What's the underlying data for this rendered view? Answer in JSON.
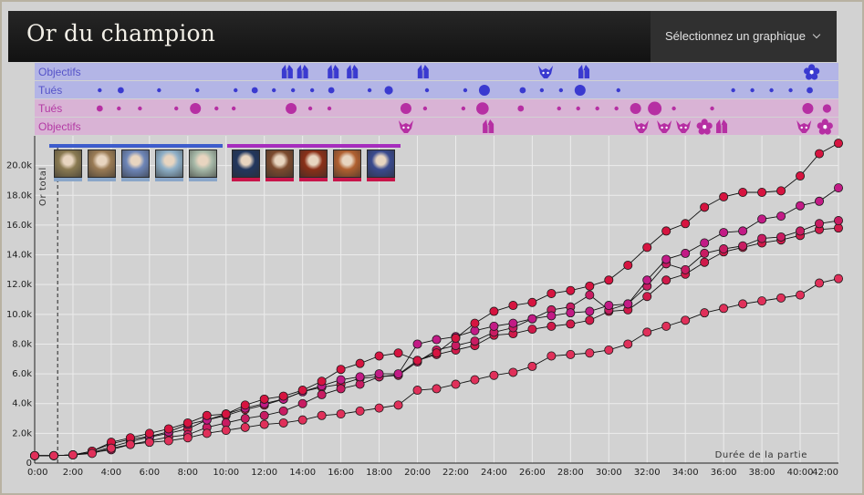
{
  "header": {
    "title": "Or du champion",
    "select_label": "Sélectionnez un graphique"
  },
  "lanes": [
    {
      "label": "Objectifs",
      "team": "blue"
    },
    {
      "label": "Tués",
      "team": "blue"
    },
    {
      "label": "Tués",
      "team": "red"
    },
    {
      "label": "Objectifs",
      "team": "red"
    }
  ],
  "colors": {
    "blue_lane": "#b3b5e6",
    "red_lane": "#d9b3d5",
    "blue_dot": "#3a3ad0",
    "red_dot": "#b62fa3",
    "blue_team": "#3d5ccc",
    "red_team": "#a62dbd",
    "blue_player": "#8aa6c9",
    "red_player": "#c8154a"
  },
  "events": {
    "blue_objectives": [
      {
        "t": 13.2,
        "icon": "baron-icon"
      },
      {
        "t": 14.0,
        "icon": "baron-icon"
      },
      {
        "t": 15.6,
        "icon": "baron-icon"
      },
      {
        "t": 16.6,
        "icon": "baron-icon"
      },
      {
        "t": 20.3,
        "icon": "baron-icon"
      },
      {
        "t": 26.7,
        "icon": "dragon-icon"
      },
      {
        "t": 28.7,
        "icon": "baron-icon"
      },
      {
        "t": 40.6,
        "icon": "flower-icon"
      }
    ],
    "blue_kills": [
      {
        "t": 3.4,
        "s": 2
      },
      {
        "t": 4.5,
        "s": 3
      },
      {
        "t": 6.5,
        "s": 2
      },
      {
        "t": 8.5,
        "s": 2
      },
      {
        "t": 10.5,
        "s": 2
      },
      {
        "t": 11.5,
        "s": 3
      },
      {
        "t": 12.5,
        "s": 2
      },
      {
        "t": 13.5,
        "s": 2
      },
      {
        "t": 14.5,
        "s": 2
      },
      {
        "t": 15.5,
        "s": 3
      },
      {
        "t": 17.5,
        "s": 2
      },
      {
        "t": 18.5,
        "s": 4
      },
      {
        "t": 20.5,
        "s": 2
      },
      {
        "t": 22.5,
        "s": 2
      },
      {
        "t": 23.5,
        "s": 5
      },
      {
        "t": 25.5,
        "s": 3
      },
      {
        "t": 26.5,
        "s": 2
      },
      {
        "t": 27.5,
        "s": 2
      },
      {
        "t": 28.5,
        "s": 5
      },
      {
        "t": 30.5,
        "s": 2
      },
      {
        "t": 36.5,
        "s": 2
      },
      {
        "t": 37.5,
        "s": 2
      },
      {
        "t": 38.5,
        "s": 2
      },
      {
        "t": 39.5,
        "s": 2
      },
      {
        "t": 40.5,
        "s": 3
      }
    ],
    "red_kills": [
      {
        "t": 3.4,
        "s": 3
      },
      {
        "t": 4.4,
        "s": 2
      },
      {
        "t": 5.5,
        "s": 2
      },
      {
        "t": 7.4,
        "s": 2
      },
      {
        "t": 8.4,
        "s": 5
      },
      {
        "t": 9.5,
        "s": 2
      },
      {
        "t": 10.4,
        "s": 2
      },
      {
        "t": 13.4,
        "s": 5
      },
      {
        "t": 14.4,
        "s": 2
      },
      {
        "t": 15.4,
        "s": 2
      },
      {
        "t": 19.4,
        "s": 5
      },
      {
        "t": 20.4,
        "s": 2
      },
      {
        "t": 22.4,
        "s": 2
      },
      {
        "t": 23.4,
        "s": 6
      },
      {
        "t": 25.4,
        "s": 3
      },
      {
        "t": 27.4,
        "s": 2
      },
      {
        "t": 28.4,
        "s": 2
      },
      {
        "t": 29.4,
        "s": 2
      },
      {
        "t": 30.4,
        "s": 2
      },
      {
        "t": 31.4,
        "s": 5
      },
      {
        "t": 32.4,
        "s": 7
      },
      {
        "t": 33.4,
        "s": 2
      },
      {
        "t": 35.4,
        "s": 2
      },
      {
        "t": 40.4,
        "s": 5
      },
      {
        "t": 41.4,
        "s": 4
      }
    ],
    "red_objectives": [
      {
        "t": 19.4,
        "icon": "dragon-icon"
      },
      {
        "t": 23.7,
        "icon": "baron-icon"
      },
      {
        "t": 31.7,
        "icon": "dragon-icon"
      },
      {
        "t": 32.9,
        "icon": "dragon-icon"
      },
      {
        "t": 33.9,
        "icon": "dragon-icon"
      },
      {
        "t": 35.0,
        "icon": "flower-icon"
      },
      {
        "t": 35.9,
        "icon": "baron-icon"
      },
      {
        "t": 40.2,
        "icon": "dragon-icon"
      },
      {
        "t": 41.3,
        "icon": "flower-icon"
      }
    ]
  },
  "teams": {
    "blue": {
      "name": "",
      "players": [
        {
          "icon": "champion-portrait-1",
          "tint": "#8a7a52"
        },
        {
          "icon": "champion-portrait-2",
          "tint": "#9a7b55"
        },
        {
          "icon": "champion-portrait-3",
          "tint": "#6e86b8"
        },
        {
          "icon": "champion-portrait-4",
          "tint": "#8fb0c8"
        },
        {
          "icon": "champion-portrait-5",
          "tint": "#a7b9a8"
        }
      ]
    },
    "red": {
      "name": "",
      "players": [
        {
          "icon": "champion-portrait-6",
          "tint": "#22375e"
        },
        {
          "icon": "champion-portrait-7",
          "tint": "#7b4a2e"
        },
        {
          "icon": "champion-portrait-8",
          "tint": "#8a3018"
        },
        {
          "icon": "champion-portrait-9",
          "tint": "#b06030"
        },
        {
          "icon": "champion-portrait-10",
          "tint": "#3a4a8e"
        }
      ]
    }
  },
  "chart_data": {
    "type": "line",
    "ylabel": "Or total",
    "xlabel": "Durée de la partie",
    "ylim": [
      0,
      22000
    ],
    "xlim": [
      0,
      42
    ],
    "x": [
      0,
      1,
      2,
      3,
      4,
      5,
      6,
      7,
      8,
      9,
      10,
      11,
      12,
      13,
      14,
      15,
      16,
      17,
      18,
      19,
      20,
      21,
      22,
      23,
      24,
      25,
      26,
      27,
      28,
      29,
      30,
      31,
      32,
      33,
      34,
      35,
      36,
      37,
      38,
      39,
      40,
      41,
      42
    ],
    "y_ticks": [
      {
        "v": 0,
        "label": "0"
      },
      {
        "v": 2000,
        "label": "2.0k"
      },
      {
        "v": 4000,
        "label": "4.0k"
      },
      {
        "v": 6000,
        "label": "6.0k"
      },
      {
        "v": 8000,
        "label": "8.0k"
      },
      {
        "v": 10000,
        "label": "10.0k"
      },
      {
        "v": 12000,
        "label": "12.0k"
      },
      {
        "v": 14000,
        "label": "14.0k"
      },
      {
        "v": 16000,
        "label": "16.0k"
      },
      {
        "v": 18000,
        "label": "18.0k"
      },
      {
        "v": 20000,
        "label": "20.0k"
      }
    ],
    "x_ticks": [
      "0:00",
      "2:00",
      "4:00",
      "6:00",
      "8:00",
      "10:00",
      "12:00",
      "14:00",
      "16:00",
      "18:00",
      "20:00",
      "22:00",
      "24:00",
      "26:00",
      "28:00",
      "30:00",
      "32:00",
      "34:00",
      "36:00",
      "38:00",
      "40:00",
      "42:00"
    ],
    "marker_time": 1.2,
    "series": [
      {
        "color": "#d01a4a",
        "values": [
          500,
          500,
          550,
          700,
          1100,
          1450,
          1750,
          2000,
          2300,
          2900,
          3200,
          3600,
          3900,
          4300,
          4800,
          5100,
          5300,
          5700,
          5800,
          5950,
          6900,
          7300,
          7600,
          7900,
          8600,
          8700,
          9000,
          9200,
          9350,
          9600,
          10200,
          10300,
          11200,
          12300,
          12700,
          13500,
          14200,
          14500,
          14800,
          15000,
          15300,
          15700,
          15800
        ]
      },
      {
        "color": "#c81c62",
        "values": [
          500,
          500,
          550,
          700,
          900,
          1250,
          1500,
          1750,
          1900,
          2400,
          2700,
          3000,
          3200,
          3500,
          4000,
          4600,
          5000,
          5300,
          5800,
          5900,
          6800,
          7600,
          7900,
          8200,
          8800,
          9100,
          9700,
          10300,
          10500,
          11300,
          10300,
          10700,
          11900,
          13400,
          13000,
          14100,
          14400,
          14600,
          15100,
          15200,
          15600,
          16100,
          16300
        ]
      },
      {
        "color": "#c21b86",
        "values": [
          500,
          500,
          550,
          800,
          1300,
          1600,
          1800,
          2100,
          2600,
          2900,
          3300,
          3700,
          4000,
          4300,
          4800,
          5200,
          5600,
          5800,
          6000,
          6000,
          8000,
          8300,
          8500,
          8900,
          9200,
          9400,
          9700,
          9900,
          10100,
          10200,
          10600,
          10700,
          12300,
          13700,
          14100,
          14800,
          15500,
          15600,
          16400,
          16600,
          17300,
          17600,
          18500
        ]
      },
      {
        "color": "#d61440",
        "values": [
          500,
          500,
          550,
          800,
          1400,
          1700,
          2000,
          2300,
          2700,
          3200,
          3300,
          3900,
          4300,
          4500,
          4900,
          5500,
          6300,
          6700,
          7200,
          7400,
          6900,
          7400,
          8400,
          9400,
          10200,
          10600,
          10800,
          11400,
          11600,
          11900,
          12300,
          13300,
          14500,
          15600,
          16100,
          17200,
          17900,
          18200,
          18200,
          18300,
          19300,
          20800,
          21500
        ]
      },
      {
        "color": "#e0305a",
        "values": [
          500,
          500,
          550,
          650,
          1000,
          1250,
          1400,
          1500,
          1700,
          2000,
          2200,
          2400,
          2600,
          2700,
          2900,
          3200,
          3300,
          3500,
          3700,
          3900,
          4900,
          5000,
          5300,
          5600,
          5900,
          6100,
          6500,
          7200,
          7300,
          7400,
          7600,
          8000,
          8800,
          9200,
          9600,
          10100,
          10400,
          10700,
          10900,
          11100,
          11300,
          12100,
          12400
        ]
      }
    ]
  }
}
